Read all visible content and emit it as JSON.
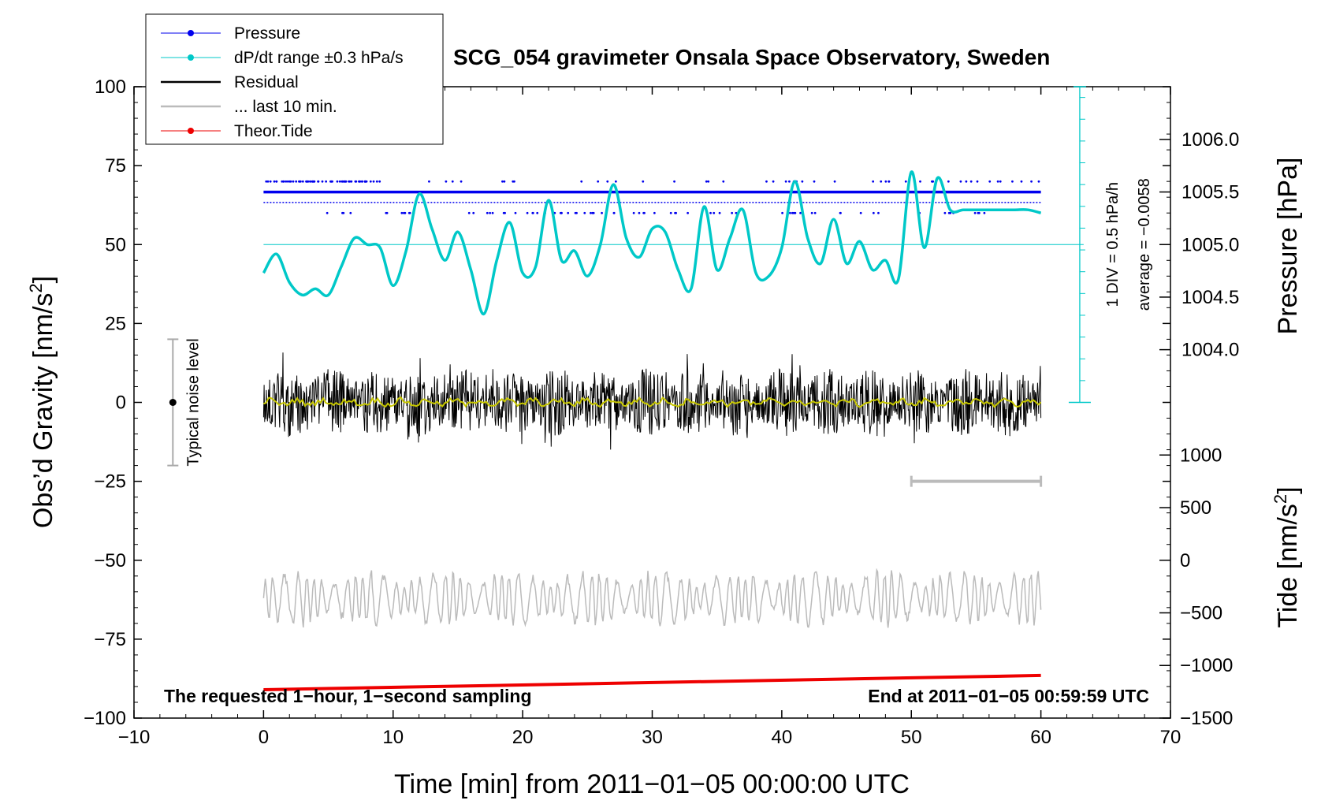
{
  "chart_data": {
    "type": "line",
    "title": "SCG_054 gravimeter Onsala Space Observatory, Sweden",
    "xlabel": "Time [min] from 2011−01−05 00:00:00 UTC",
    "ylabel_left": "Obs’d Gravity [nm/s²]",
    "ylabel_left_parts": [
      "Obs’d Gravity [nm/s",
      "2",
      "]"
    ],
    "ylabel_right_pressure": "Pressure [hPa]",
    "ylabel_right_tide": "Tide [nm/s²]",
    "ylabel_right_tide_parts": [
      "Tide [nm/s",
      "2",
      "]"
    ],
    "xlim": [
      -10,
      70
    ],
    "ylim": [
      -100,
      100
    ],
    "x_ticks": [
      -10,
      0,
      10,
      20,
      30,
      40,
      50,
      60,
      70
    ],
    "x_tick_labels": [
      "−10",
      "0",
      "10",
      "20",
      "30",
      "40",
      "50",
      "60",
      "70"
    ],
    "y_ticks": [
      100,
      75,
      50,
      25,
      0,
      -25,
      -50,
      -75,
      -100
    ],
    "y_tick_labels": [
      "100",
      "75",
      "50",
      "25",
      "0",
      "−25",
      "−50",
      "−75",
      "−100"
    ],
    "pressure_axis": {
      "ticks": [
        1006.0,
        1005.5,
        1005.0,
        1004.5,
        1004.0
      ],
      "tick_labels": [
        "1006.0",
        "1005.5",
        "1005.0",
        "1004.5",
        "1004.0"
      ],
      "gravity_at_1005": 50,
      "gravity_per_hpa": 33.3
    },
    "tide_axis": {
      "ticks": [
        1000,
        500,
        0,
        -500,
        -1000,
        -1500
      ],
      "tick_labels": [
        "1000",
        "500",
        "0",
        "−500",
        "−1000",
        "−1500"
      ],
      "gravity_at_0": -50,
      "gravity_per_unit": 0.03333
    },
    "legend": [
      {
        "label": "Pressure",
        "color": "#0000ee",
        "marker": true
      },
      {
        "label": "dP/dt range ±0.3 hPa/s",
        "color": "#00c8c8",
        "marker": true
      },
      {
        "label": "Residual",
        "color": "#000000",
        "marker": false
      },
      {
        "label": "... last 10 min.",
        "color": "#bbbbbb",
        "marker": false
      },
      {
        "label": "Theor.Tide",
        "color": "#ee0000",
        "marker": true
      }
    ],
    "series": [
      {
        "name": "Pressure",
        "color": "#0000ee",
        "levels_hpa": [
          1005.6,
          1005.5,
          1005.4,
          1005.3
        ],
        "main_level_hpa": 1005.5
      },
      {
        "name": "dP/dt",
        "color": "#00c8c8",
        "x": [
          0,
          1,
          2,
          3,
          4,
          5,
          6,
          7,
          8,
          9,
          10,
          11,
          12,
          13,
          14,
          15,
          16,
          17,
          18,
          19,
          20,
          21,
          22,
          23,
          24,
          25,
          26,
          27,
          28,
          29,
          30,
          31,
          32,
          33,
          34,
          35,
          36,
          37,
          38,
          39,
          40,
          41,
          42,
          43,
          44,
          45,
          46,
          47,
          48,
          49,
          50,
          51,
          52,
          53,
          54,
          55,
          56,
          57,
          58,
          59,
          60
        ],
        "y": [
          41,
          47,
          38,
          34,
          36,
          34,
          43,
          52,
          50,
          49,
          37,
          48,
          66,
          55,
          45,
          54,
          42,
          28,
          45,
          57,
          41,
          43,
          64,
          45,
          48,
          40,
          50,
          69,
          52,
          46,
          55,
          54,
          42,
          36,
          62,
          42,
          52,
          61,
          41,
          40,
          49,
          70,
          52,
          44,
          58,
          44,
          51,
          42,
          45,
          39,
          73,
          49,
          71,
          61,
          61,
          61,
          61,
          61,
          61,
          61,
          60
        ]
      },
      {
        "name": "Residual",
        "color": "#000000",
        "x_range": [
          0,
          60
        ],
        "amplitude_nm_s2": 12
      },
      {
        "name": "Residual smoothed",
        "color": "#c8c800",
        "x_range": [
          0,
          60
        ],
        "level": 0
      },
      {
        "name": "... last 10 min.",
        "color": "#bbbbbb",
        "x_range": [
          0,
          60
        ],
        "center_nm_s2": -62,
        "amplitude_nm_s2": 10
      },
      {
        "name": "Theor.Tide",
        "color": "#ee0000",
        "x": [
          0,
          60
        ],
        "y": [
          -91,
          -86.5
        ]
      }
    ],
    "noise_bar": {
      "label": "Typical noise level",
      "x": -7,
      "y": [
        -20,
        20
      ],
      "center": 0
    },
    "last10_marker": {
      "x": [
        50,
        60
      ],
      "y": -25
    },
    "pressure_scale_bar": {
      "label_div": "1 DIV = 0.5 hPa/h",
      "label_avg": "average = −0.0058",
      "x": 63,
      "y": [
        100,
        0
      ],
      "center_y": 50
    },
    "annotations": {
      "left_bottom": "The requested 1−hour, 1−second sampling",
      "right_bottom": "End at 2011−01−05 00:59:59 UTC"
    }
  },
  "colors": {
    "pressure": "#0000ee",
    "dpdt": "#00c8c8",
    "residual": "#000000",
    "smooth": "#c8c800",
    "last10": "#bbbbbb",
    "tide": "#ee0000"
  }
}
